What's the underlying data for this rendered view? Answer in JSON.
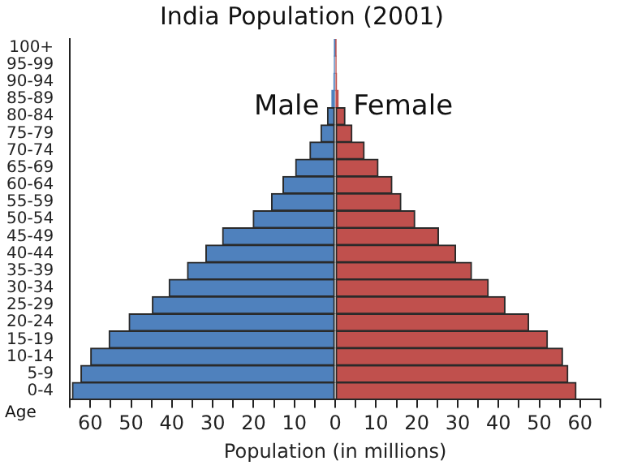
{
  "chart_data": {
    "type": "bar",
    "title": "India Population (2001)",
    "xlabel": "Population (in millions)",
    "ylabel": "Age",
    "orientation": "horizontal",
    "stacked": true,
    "categories": [
      "100+",
      "95-99",
      "90-94",
      "85-89",
      "80-84",
      "75-79",
      "70-74",
      "65-69",
      "60-64",
      "55-59",
      "50-54",
      "45-49",
      "40-44",
      "35-39",
      "30-34",
      "25-29",
      "20-24",
      "15-19",
      "10-14",
      "5-9",
      "0-4"
    ],
    "series": [
      {
        "name": "Male",
        "color": "#4f81bd",
        "values": [
          -0.1,
          -0.2,
          -0.3,
          -0.8,
          -1.9,
          -3.5,
          -6.2,
          -9.7,
          -12.8,
          -15.6,
          -20.1,
          -27.6,
          -31.7,
          -36.2,
          -40.7,
          -44.8,
          -50.5,
          -55.4,
          -59.9,
          -62.3,
          -64.4
        ]
      },
      {
        "name": "Female",
        "color": "#c0504d",
        "values": [
          0.1,
          0.2,
          0.3,
          0.7,
          2.4,
          4.1,
          7.1,
          10.5,
          13.9,
          16.1,
          19.5,
          25.3,
          29.5,
          33.4,
          37.5,
          41.6,
          47.4,
          52.0,
          55.7,
          57.0,
          59.0
        ]
      }
    ],
    "xlim": [
      -65,
      65
    ],
    "xticks": [
      {
        "value": -65,
        "label": null
      },
      {
        "value": -60,
        "label": "60"
      },
      {
        "value": -55,
        "label": null
      },
      {
        "value": -50,
        "label": "50"
      },
      {
        "value": -45,
        "label": null
      },
      {
        "value": -40,
        "label": "40"
      },
      {
        "value": -35,
        "label": null
      },
      {
        "value": -30,
        "label": "30"
      },
      {
        "value": -25,
        "label": null
      },
      {
        "value": -20,
        "label": "20"
      },
      {
        "value": -15,
        "label": null
      },
      {
        "value": -10,
        "label": "10"
      },
      {
        "value": -5,
        "label": null
      },
      0,
      {
        "value": 5,
        "label": null
      },
      10,
      {
        "value": 15,
        "label": null
      },
      20,
      {
        "value": 25,
        "label": null
      },
      30,
      {
        "value": 35,
        "label": null
      },
      40,
      {
        "value": 45,
        "label": null
      },
      50,
      {
        "value": 55,
        "label": null
      },
      60,
      {
        "value": 65,
        "label": null
      }
    ],
    "grid": false
  }
}
